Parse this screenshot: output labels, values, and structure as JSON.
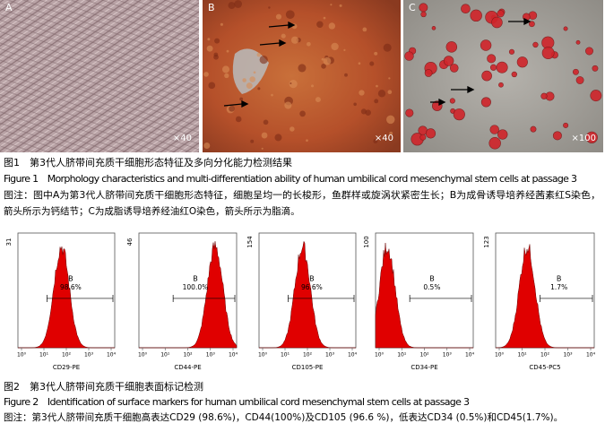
{
  "figure1": {
    "panels": [
      {
        "label": "A",
        "magnification": "×40"
      },
      {
        "label": "B",
        "magnification": "×40"
      },
      {
        "label": "C",
        "magnification": "×100"
      }
    ],
    "caption_cn": "图1　第3代人脐带间充质干细胞形态特征及多向分化能力检测结果",
    "caption_en": "Figure 1　Morphology characteristics and multi-differentiation ability of human umbilical cord mesenchymal stem cells at passage 3",
    "note_line1": "图注：图中A为第3代人脐带间充质干细胞形态特征，细胞呈均一的长梭形，鱼群样或旋涡状紧密生长；B为成骨诱导培养经茜素红S染色，",
    "note_line2": "箭头所示为钙结节；C为成脂诱导培养经油红O染色，箭头所示为脂滴。"
  },
  "figure2": {
    "x_tick_labels": [
      "10⁰",
      "10¹",
      "10²",
      "10³",
      "10⁴"
    ],
    "histograms": [
      {
        "y_max": "31",
        "gate": "B",
        "percent": "98.6%",
        "marker": "CD29-PE"
      },
      {
        "y_max": "46",
        "gate": "B",
        "percent": "100.0%",
        "marker": "CD44-PE"
      },
      {
        "y_max": "154",
        "gate": "B",
        "percent": "96.6%",
        "marker": "CD105-PE"
      },
      {
        "y_max": "100",
        "gate": "B",
        "percent": "0.5%",
        "marker": "CD34-PE"
      },
      {
        "y_max": "123",
        "gate": "B",
        "percent": "1.7%",
        "marker": "CD45-PC5"
      }
    ],
    "caption_cn": "图2　第3代人脐带间充质干细胞表面标记检测",
    "caption_en": "Figure 2　Identification of surface markers for human umbilical cord mesenchymal stem cells at passage 3",
    "note": "图注：第3代人脐带间充质干细胞高表达CD29 (98.6%)，CD44(100%)及CD105 (96.6 %)，低表达CD34 (0.5%)和CD45(1.7%)。"
  }
}
